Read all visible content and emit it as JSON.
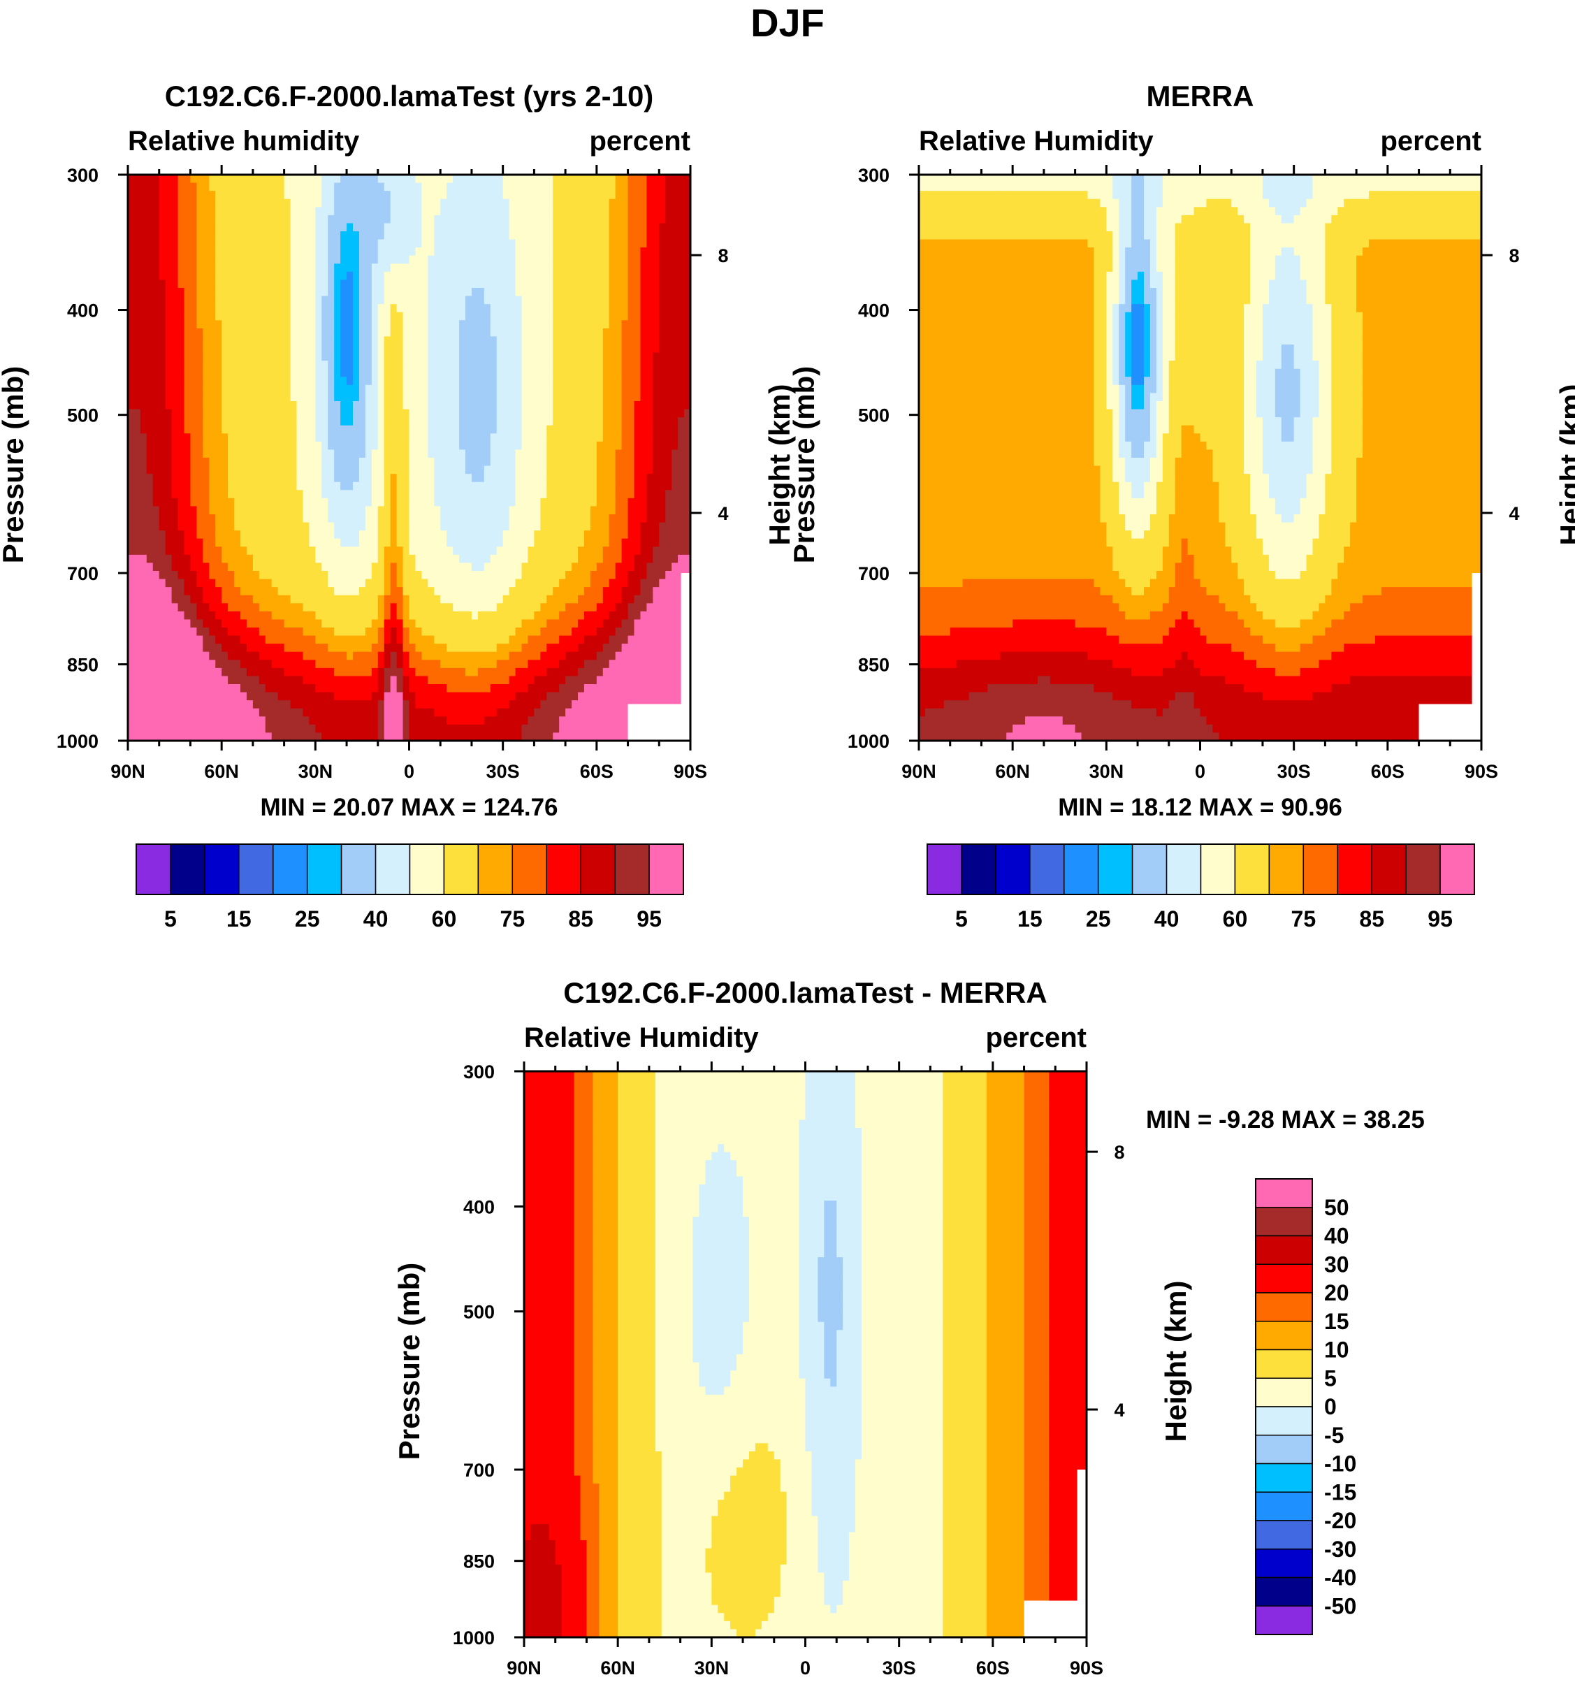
{
  "figure": {
    "title": "DJF"
  },
  "palettes": {
    "abs": [
      "#8a2be2",
      "#00008b",
      "#0000cd",
      "#4169e1",
      "#1e90ff",
      "#00bfff",
      "#a2cdf9",
      "#d4f0fc",
      "#fffdcc",
      "#fde03c",
      "#feaa00",
      "#ff6a00",
      "#ff0000",
      "#cc0000",
      "#a52a2a",
      "#ff69b4"
    ],
    "diff": [
      "#8a2be2",
      "#00008b",
      "#0000cd",
      "#4169e1",
      "#1e90ff",
      "#00bfff",
      "#a2cdf9",
      "#d4f0fc",
      "#fffdcc",
      "#fde03c",
      "#feaa00",
      "#ff6a00",
      "#ff0000",
      "#cc0000",
      "#a52a2a",
      "#ff69b4"
    ]
  },
  "chart_data": [
    {
      "id": "model",
      "type": "heatmap",
      "title": "C192.C6.F-2000.lamaTest (yrs 2-10)",
      "left_label": "Relative humidity",
      "right_label": "percent",
      "ylabel": "Pressure (mb)",
      "ylabel_right": "Height (km)",
      "x_ticks": [
        "90N",
        "60N",
        "30N",
        "0",
        "30S",
        "60S",
        "90S"
      ],
      "y_ticks": [
        "300",
        "400",
        "500",
        "700",
        "850",
        "1000"
      ],
      "y_ticks_right": [
        "8",
        "4"
      ],
      "xlim": [
        90,
        -90
      ],
      "ylim": [
        1000,
        300
      ],
      "stats": "MIN =  20.07  MAX = 124.76",
      "min": 20.07,
      "max": 124.76,
      "colorbar_labels": [
        "5",
        "15",
        "25",
        "40",
        "60",
        "75",
        "85",
        "95"
      ],
      "colorbar_levels": [
        5,
        10,
        15,
        20,
        25,
        30,
        40,
        50,
        60,
        70,
        75,
        80,
        85,
        90,
        95
      ]
    },
    {
      "id": "obs",
      "type": "heatmap",
      "title": "MERRA",
      "left_label": "Relative Humidity",
      "right_label": "percent",
      "ylabel": "Pressure (mb)",
      "ylabel_right": "Height (km)",
      "x_ticks": [
        "90N",
        "60N",
        "30N",
        "0",
        "30S",
        "60S",
        "90S"
      ],
      "y_ticks": [
        "300",
        "400",
        "500",
        "700",
        "850",
        "1000"
      ],
      "y_ticks_right": [
        "8",
        "4"
      ],
      "xlim": [
        90,
        -90
      ],
      "ylim": [
        1000,
        300
      ],
      "stats": "MIN =  18.12  MAX =  90.96",
      "min": 18.12,
      "max": 90.96,
      "colorbar_labels": [
        "5",
        "15",
        "25",
        "40",
        "60",
        "75",
        "85",
        "95"
      ],
      "colorbar_levels": [
        5,
        10,
        15,
        20,
        25,
        30,
        40,
        50,
        60,
        70,
        75,
        80,
        85,
        90,
        95
      ]
    },
    {
      "id": "diff",
      "type": "heatmap",
      "title": "C192.C6.F-2000.lamaTest - MERRA",
      "left_label": "Relative Humidity",
      "right_label": "percent",
      "ylabel": "Pressure (mb)",
      "ylabel_right": "Height (km)",
      "x_ticks": [
        "90N",
        "60N",
        "30N",
        "0",
        "30S",
        "60S",
        "90S"
      ],
      "y_ticks": [
        "300",
        "400",
        "500",
        "700",
        "850",
        "1000"
      ],
      "y_ticks_right": [
        "8",
        "4"
      ],
      "xlim": [
        90,
        -90
      ],
      "ylim": [
        1000,
        300
      ],
      "stats": "MIN =  -9.28  MAX =  38.25",
      "min": -9.28,
      "max": 38.25,
      "colorbar_labels": [
        "50",
        "40",
        "30",
        "20",
        "15",
        "10",
        "5",
        "0",
        "-5",
        "-10",
        "-15",
        "-20",
        "-30",
        "-40",
        "-50"
      ],
      "colorbar_levels": [
        -50,
        -40,
        -30,
        -20,
        -15,
        -10,
        -5,
        0,
        5,
        10,
        15,
        20,
        30,
        40,
        50
      ]
    }
  ]
}
